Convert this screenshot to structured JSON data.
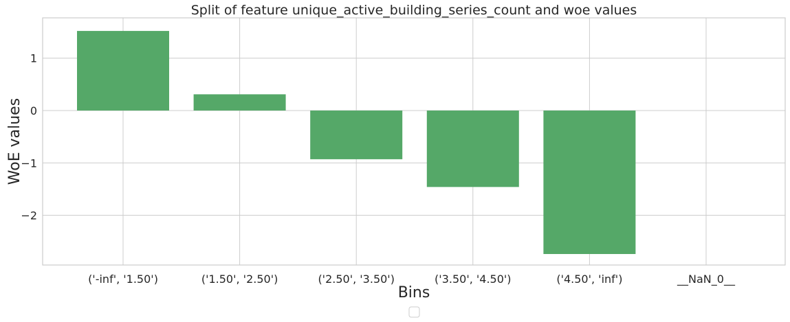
{
  "chart_data": {
    "type": "bar",
    "title": "Split of feature unique_active_building_series_count and woe values",
    "xlabel": "Bins",
    "ylabel": "WoE values",
    "categories": [
      "('-inf', '1.50')",
      "('1.50', '2.50')",
      "('2.50', '3.50')",
      "('3.50', '4.50')",
      "('4.50', 'inf')",
      "__NaN_0__"
    ],
    "values": [
      1.52,
      0.31,
      -0.93,
      -1.46,
      -2.74,
      0.0
    ],
    "ylim": [
      -2.95,
      1.77
    ],
    "yticks": [
      1,
      0,
      -1,
      -2
    ],
    "ytick_labels": [
      "1",
      "0",
      "−1",
      "−2"
    ],
    "grid": true,
    "bar_color": "#55a868",
    "grid_color": "#cccccc",
    "legend": "bottom-center, empty"
  }
}
